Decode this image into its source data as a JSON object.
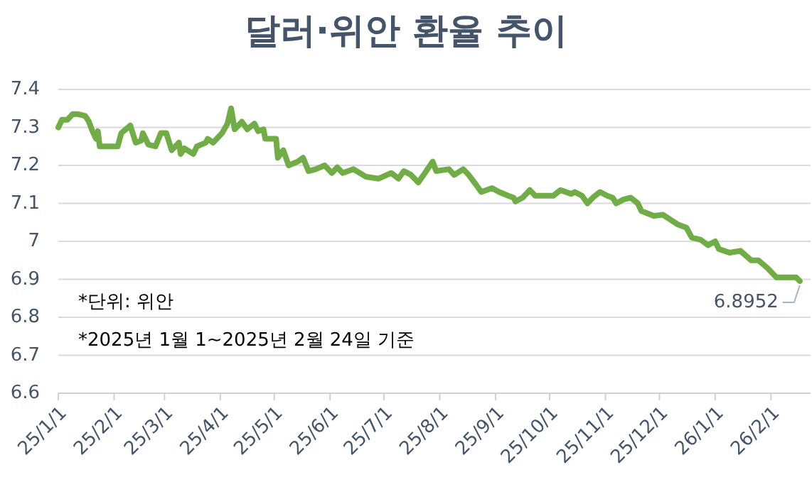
{
  "chart_data": {
    "type": "line",
    "title": "달러·위안 환율 추이",
    "x": [
      "2025-01-01",
      "2025-01-03",
      "2025-01-06",
      "2025-01-09",
      "2025-01-12",
      "2025-01-16",
      "2025-01-18",
      "2025-01-20",
      "2025-01-22",
      "2025-01-23",
      "2025-01-24",
      "2025-02-03",
      "2025-02-05",
      "2025-02-10",
      "2025-02-13",
      "2025-02-16",
      "2025-02-17",
      "2025-02-20",
      "2025-02-24",
      "2025-02-27",
      "2025-03-02",
      "2025-03-05",
      "2025-03-09",
      "2025-03-10",
      "2025-03-12",
      "2025-03-17",
      "2025-03-19",
      "2025-03-24",
      "2025-03-25",
      "2025-03-28",
      "2025-04-02",
      "2025-04-05",
      "2025-04-07",
      "2025-04-09",
      "2025-04-13",
      "2025-04-16",
      "2025-04-20",
      "2025-04-22",
      "2025-04-25",
      "2025-04-26",
      "2025-05-02",
      "2025-05-03",
      "2025-05-06",
      "2025-05-09",
      "2025-05-14",
      "2025-05-17",
      "2025-05-20",
      "2025-05-24",
      "2025-05-29",
      "2025-06-02",
      "2025-06-05",
      "2025-06-08",
      "2025-06-14",
      "2025-06-21",
      "2025-06-28",
      "2025-07-05",
      "2025-07-09",
      "2025-07-12",
      "2025-07-16",
      "2025-07-20",
      "2025-07-23",
      "2025-07-28",
      "2025-07-30",
      "2025-08-06",
      "2025-08-09",
      "2025-08-14",
      "2025-08-17",
      "2025-08-21",
      "2025-08-24",
      "2025-08-30",
      "2025-09-03",
      "2025-09-08",
      "2025-09-11",
      "2025-09-12",
      "2025-09-16",
      "2025-09-20",
      "2025-09-23",
      "2025-10-03",
      "2025-10-07",
      "2025-10-13",
      "2025-10-15",
      "2025-10-19",
      "2025-10-22",
      "2025-10-25",
      "2025-10-29",
      "2025-11-02",
      "2025-11-05",
      "2025-11-07",
      "2025-11-11",
      "2025-11-15",
      "2025-11-19",
      "2025-11-21",
      "2025-11-28",
      "2025-12-03",
      "2025-12-11",
      "2025-12-16",
      "2025-12-19",
      "2025-12-24",
      "2025-12-28",
      "2026-01-01",
      "2026-01-03",
      "2026-01-09",
      "2026-01-15",
      "2026-01-21",
      "2026-01-25",
      "2026-01-30",
      "2026-02-04",
      "2026-02-15",
      "2026-02-17"
    ],
    "series": [
      {
        "color": "#70ad47",
        "values": [
          7.3,
          7.32,
          7.32,
          7.335,
          7.335,
          7.33,
          7.315,
          7.29,
          7.27,
          7.29,
          7.25,
          7.25,
          7.285,
          7.305,
          7.26,
          7.265,
          7.285,
          7.255,
          7.25,
          7.285,
          7.285,
          7.24,
          7.26,
          7.23,
          7.245,
          7.23,
          7.25,
          7.26,
          7.27,
          7.26,
          7.285,
          7.31,
          7.35,
          7.295,
          7.315,
          7.295,
          7.31,
          7.29,
          7.295,
          7.27,
          7.27,
          7.22,
          7.24,
          7.2,
          7.21,
          7.22,
          7.185,
          7.19,
          7.2,
          7.18,
          7.195,
          7.18,
          7.19,
          7.17,
          7.165,
          7.18,
          7.165,
          7.185,
          7.175,
          7.155,
          7.175,
          7.21,
          7.185,
          7.19,
          7.175,
          7.19,
          7.175,
          7.15,
          7.13,
          7.14,
          7.13,
          7.12,
          7.115,
          7.105,
          7.115,
          7.135,
          7.12,
          7.12,
          7.135,
          7.125,
          7.13,
          7.12,
          7.1,
          7.115,
          7.13,
          7.12,
          7.115,
          7.1,
          7.11,
          7.115,
          7.1,
          7.08,
          7.067,
          7.07,
          7.045,
          7.036,
          7.01,
          7.004,
          6.99,
          7.0,
          6.98,
          6.97,
          6.975,
          6.95,
          6.95,
          6.93,
          6.905,
          6.905,
          6.8952
        ]
      }
    ],
    "xlim": [
      "2025-01-01",
      "2026-02-23"
    ],
    "xticks": [
      {
        "value": "2025-01-01",
        "label": "25/1/1"
      },
      {
        "value": "2025-02-01",
        "label": "25/2/1"
      },
      {
        "value": "2025-03-01",
        "label": "25/3/1"
      },
      {
        "value": "2025-04-01",
        "label": "25/4/1"
      },
      {
        "value": "2025-05-01",
        "label": "25/5/1"
      },
      {
        "value": "2025-06-01",
        "label": "25/6/1"
      },
      {
        "value": "2025-07-01",
        "label": "25/7/1"
      },
      {
        "value": "2025-08-01",
        "label": "25/8/1"
      },
      {
        "value": "2025-09-01",
        "label": "25/9/1"
      },
      {
        "value": "2025-10-01",
        "label": "25/10/1"
      },
      {
        "value": "2025-11-01",
        "label": "25/11/1"
      },
      {
        "value": "2025-12-01",
        "label": "25/12/1"
      },
      {
        "value": "2026-01-01",
        "label": "26/1/1"
      },
      {
        "value": "2026-02-01",
        "label": "26/2/1"
      }
    ],
    "ylim": [
      6.6,
      7.4
    ],
    "yticks": [
      6.6,
      6.7,
      6.8,
      6.9,
      7,
      7.1,
      7.2,
      7.3,
      7.4
    ],
    "grid": "y",
    "line_style": "solid",
    "annotations": [
      {
        "text": "6.8952",
        "x": "2026-02-17",
        "y": 6.8952
      },
      "*단위: 위안",
      "*2025년 1월 1~2025년 2월 24일 기준"
    ]
  }
}
